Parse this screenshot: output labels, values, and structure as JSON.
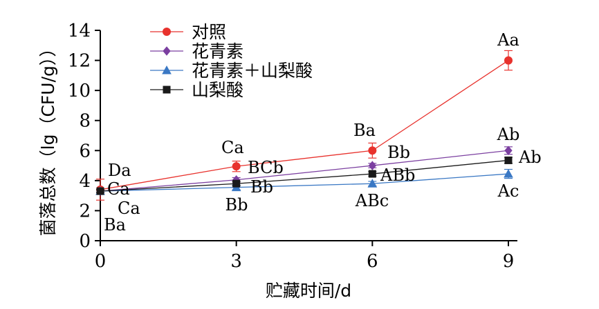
{
  "chart_data": {
    "type": "line",
    "x": [
      0,
      3,
      6,
      9
    ],
    "xticks": [
      "0",
      "3",
      "6",
      "9"
    ],
    "yticks": [
      "0",
      "2",
      "4",
      "6",
      "8",
      "10",
      "12",
      "14"
    ],
    "xlabel": "贮藏时间/d",
    "ylabel": "菌落总数（lg（CFU/g））",
    "xlim": [
      0,
      9
    ],
    "ylim": [
      0,
      14
    ],
    "grid": false,
    "legend_position": "top-left",
    "series": [
      {
        "name": "对照",
        "color": "#e8322d",
        "marker": "circle",
        "values": [
          3.4,
          4.95,
          6.0,
          12.0
        ],
        "errors": [
          0.7,
          0.35,
          0.5,
          0.65
        ],
        "labels": [
          "Da",
          "Ca",
          "Ba",
          "Aa"
        ]
      },
      {
        "name": "花青素",
        "color": "#7b3fa0",
        "marker": "diamond",
        "values": [
          3.3,
          4.05,
          5.0,
          6.0
        ],
        "errors": [
          0.1,
          0.15,
          0.15,
          0.25
        ],
        "labels": [
          "Ca",
          "BCb",
          "Bb",
          "Ab"
        ]
      },
      {
        "name": "花青素＋山梨酸",
        "color": "#3a78c4",
        "marker": "triangle",
        "values": [
          3.3,
          3.55,
          3.8,
          4.45
        ],
        "errors": [
          0.1,
          0.15,
          0.15,
          0.3
        ],
        "labels": [
          "Ba",
          "Bb",
          "ABc",
          "Ac"
        ]
      },
      {
        "name": "山梨酸",
        "color": "#1a1a1a",
        "marker": "square",
        "values": [
          3.3,
          3.8,
          4.45,
          5.35
        ],
        "errors": [
          0.1,
          0.15,
          0.15,
          0.2
        ],
        "labels": [
          "Ca",
          "Bb",
          "ABb",
          "Ab"
        ]
      }
    ]
  }
}
